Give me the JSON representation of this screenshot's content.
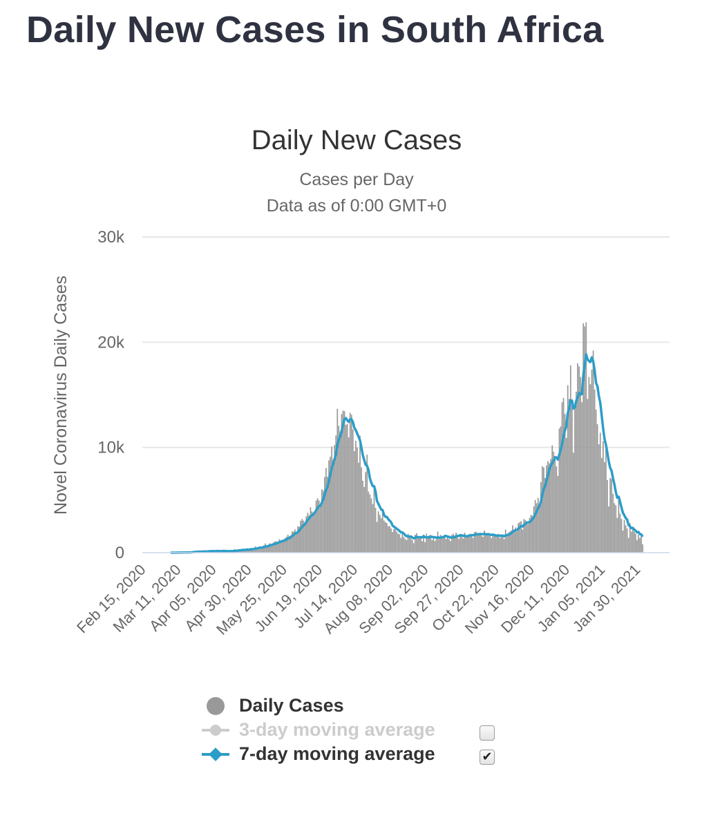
{
  "page": {
    "title": "Daily New Cases in South Africa"
  },
  "chart_data": {
    "type": "bar",
    "title": "Daily New Cases",
    "subtitle_line1": "Cases per Day",
    "subtitle_line2": "Data as of 0:00 GMT+0",
    "ylabel": "Novel Coronavirus Daily Cases",
    "ylim": [
      0,
      30000
    ],
    "yticks": [
      0,
      10000,
      20000,
      30000
    ],
    "ytick_labels": [
      "0",
      "10k",
      "20k",
      "30k"
    ],
    "x_start": "Feb 15, 2020",
    "x_end": "Feb 22, 2021",
    "xtick_labels": [
      "Feb 15, 2020",
      "Mar 11, 2020",
      "Apr 05, 2020",
      "Apr 30, 2020",
      "May 25, 2020",
      "Jun 19, 2020",
      "Jul 14, 2020",
      "Aug 08, 2020",
      "Sep 02, 2020",
      "Sep 27, 2020",
      "Oct 22, 2020",
      "Nov 16, 2020",
      "Dec 11, 2020",
      "Jan 05, 2021",
      "Jan 30, 2021"
    ],
    "xtick_interval_days": 25,
    "series": [
      {
        "name": "Daily Cases",
        "type": "bar",
        "color": "#999999",
        "start_day": 20,
        "note": "approximate daily values (every day from Mar 06, 2020)",
        "values": [
          1,
          1,
          1,
          3,
          7,
          7,
          13,
          17,
          13,
          17,
          9,
          38,
          18,
          28,
          52,
          87,
          70,
          146,
          155,
          80,
          93,
          36,
          88,
          90,
          243,
          95,
          145,
          162,
          126,
          178,
          89,
          157,
          156,
          251,
          143,
          99,
          178,
          142,
          157,
          91,
          181,
          106,
          143,
          195,
          142,
          320,
          226,
          154,
          286,
          249,
          297,
          354,
          173,
          365,
          385,
          196,
          317,
          458,
          424,
          304,
          595,
          498,
          447,
          581,
          532,
          427,
          702,
          874,
          597,
          712,
          884,
          810,
          743,
          1006,
          1083,
          1045,
          1042,
          1278,
          1135,
          1095,
          1267,
          1398,
          1511,
          1712,
          1566,
          1639,
          2026,
          2011,
          2213,
          1808,
          2497,
          2476,
          3031,
          3204,
          3053,
          2733,
          3453,
          3789,
          3558,
          4302,
          3915,
          3791,
          3877,
          4966,
          5164,
          4963,
          4474,
          6025,
          5890,
          7191,
          8053,
          7216,
          8772,
          9112,
          10082,
          8859,
          10222,
          11134,
          13674,
          12058,
          11528,
          13172,
          13497,
          13449,
          12147,
          12225,
          10952,
          13285,
          13110,
          11723,
          9652,
          10629,
          10008,
          8549,
          11112,
          8112,
          6832,
          6245,
          7654,
          9312,
          5811,
          5532,
          5158,
          4618,
          6092,
          4258,
          2923,
          3935,
          3596,
          3267,
          4183,
          3051,
          2899,
          2816,
          2500,
          2541,
          2300,
          1966,
          2257,
          2313,
          2000,
          1811,
          1759,
          1400,
          1900,
          1500,
          1300,
          1200,
          1800,
          1600,
          1500,
          1200,
          900,
          1700,
          1850,
          1600,
          1500,
          1550,
          1100,
          1700,
          1000,
          1800,
          1500,
          1650,
          1700,
          1200,
          1400,
          1100,
          1250,
          2000,
          1300,
          1700,
          1500,
          1600,
          1700,
          1300,
          1450,
          1300,
          1100,
          1700,
          1800,
          1650,
          1900,
          1700,
          1300,
          1600,
          1600,
          1350,
          1900,
          1500,
          1650,
          1700,
          1800,
          1700,
          1400,
          1950,
          2000,
          1700,
          1700,
          1900,
          1600,
          1500,
          2100,
          1800,
          1700,
          1700,
          1600,
          1400,
          1800,
          1700,
          1600,
          1500,
          1800,
          1400,
          1600,
          1700,
          1300,
          2200,
          1700,
          1900,
          2000,
          2100,
          2600,
          2100,
          2400,
          2000,
          2800,
          2900,
          3000,
          2200,
          3200,
          3100,
          2900,
          2700,
          3300,
          3600,
          3500,
          4400,
          5000,
          4700,
          5200,
          4500,
          6700,
          8200,
          8100,
          7100,
          8300,
          8700,
          8500,
          8900,
          10200,
          9600,
          9200,
          8200,
          7300,
          11800,
          12000,
          14300,
          14700,
          13200,
          10900,
          15900,
          14600,
          17800,
          14000,
          9500,
          14000,
          15300,
          18000,
          17700,
          16700,
          14300,
          21800,
          21500,
          21900,
          14600,
          16700,
          16000,
          17400,
          19200,
          15500,
          13600,
          12200,
          10300,
          11400,
          9000,
          10600,
          8600,
          9800,
          6900,
          4400,
          7100,
          7000,
          5600,
          4700,
          4500,
          3300,
          5000,
          3700,
          3200,
          2100,
          3100,
          2600,
          2300,
          1400,
          2800,
          2000,
          2300,
          2000,
          1800,
          1200,
          1700,
          1400,
          1700,
          800
        ]
      },
      {
        "name": "3-day moving average",
        "type": "line",
        "color": "#c8c8c8",
        "visible": false,
        "legend_checked": false
      },
      {
        "name": "7-day moving average",
        "type": "line",
        "color": "#2c9dc8",
        "visible": true,
        "legend_checked": true,
        "note": "7-day average of the daily cases above"
      }
    ]
  },
  "legend": {
    "daily": "Daily Cases",
    "ma3": "3-day moving average",
    "ma7": "7-day moving average",
    "check_mark": "✔"
  }
}
